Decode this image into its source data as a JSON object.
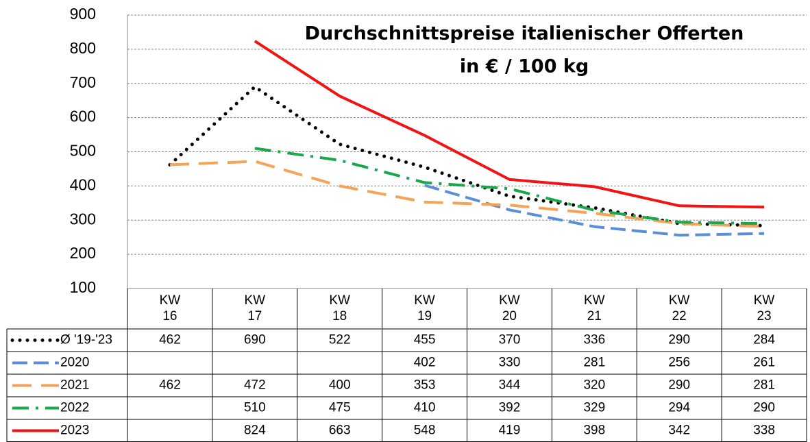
{
  "chart_data": {
    "type": "line",
    "title": [
      "Durchschnittspreise italienischer Offerten",
      "in € / 100 kg"
    ],
    "categories": [
      "KW 16",
      "KW 17",
      "KW 18",
      "KW 19",
      "KW 20",
      "KW 21",
      "KW 22",
      "KW 23"
    ],
    "series": [
      {
        "name": "Ø '19-'23",
        "color": "#000000",
        "values": [
          462,
          690,
          522,
          455,
          370,
          336,
          290,
          284
        ]
      },
      {
        "name": "2020",
        "color": "#5b8ed8",
        "values": [
          null,
          null,
          null,
          402,
          330,
          281,
          256,
          261
        ]
      },
      {
        "name": "2021",
        "color": "#f5a356",
        "values": [
          462,
          472,
          400,
          353,
          344,
          320,
          290,
          281
        ]
      },
      {
        "name": "2022",
        "color": "#1aa64a",
        "values": [
          null,
          510,
          475,
          410,
          392,
          329,
          294,
          290
        ]
      },
      {
        "name": "2023",
        "color": "#f01414",
        "values": [
          null,
          824,
          663,
          548,
          419,
          398,
          342,
          338
        ]
      }
    ],
    "ylim": [
      100,
      900
    ],
    "yticks": [
      100,
      200,
      300,
      400,
      500,
      600,
      700,
      800,
      900
    ],
    "grid": true
  }
}
